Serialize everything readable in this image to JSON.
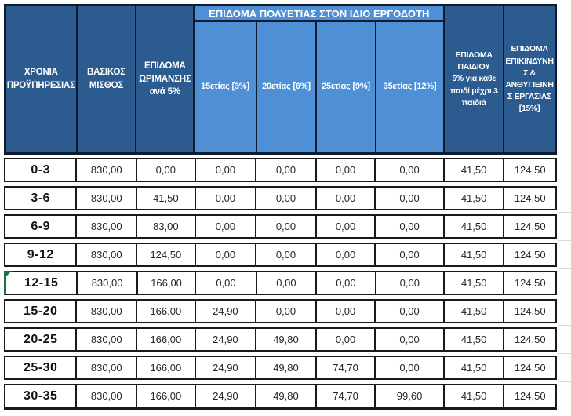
{
  "colors": {
    "header_dark": "#2C5B90",
    "header_light": "#4E8FD6",
    "border_dark": "#0F1C30",
    "row_border": "#1A1A1A",
    "selection_green": "#1E7145",
    "text_header": "#FFFFFF",
    "text_values": "#262626",
    "gridline": "#D9D9D9"
  },
  "table": {
    "header": {
      "years": "ΧΡΟΝΙΑ\nΠΡΟΫΠΗΡΕΣΙΑΣ",
      "base_salary": "ΒΑΣΙΚΟΣ\nΜΙΣΘΟΣ",
      "maturity": "ΕΠΙΔΟΜΑ\nΩΡΙΜΑΝΣΗΣ\nανά 5%",
      "polyetia_banner": "ΕΠΙΔΟΜΑ ΠΟΛΥΕΤΙΑΣ ΣΤΟΝ ΙΔΙΟ ΕΡΓΟΔΟΤΗ",
      "polyetia_cols": [
        "15ετίας [3%]",
        "20ετίας [6%]",
        "25ετίας [9%]",
        "35ετίας [12%]"
      ],
      "child": "ΕΠΙΔΟΜΑ\nΠΑΙΔΙΟΥ\n5% για κάθε\nπαιδί μέχρι 3\nπαιδιά",
      "hazard": "ΕΠΙΔΟΜΑ\nΕΠΙΚΙΝΔΥΝΗ\nΣ &\nΑΝΘΥΓΙΕΙΝΗ\nΣ ΕΡΓΑΣΙΑΣ\n[15%]"
    },
    "rows": [
      {
        "years": "0-3",
        "selected": false,
        "values": [
          "830,00",
          "0,00",
          "0,00",
          "0,00",
          "0,00",
          "0,00",
          "41,50",
          "124,50"
        ]
      },
      {
        "years": "3-6",
        "selected": false,
        "values": [
          "830,00",
          "41,50",
          "0,00",
          "0,00",
          "0,00",
          "0,00",
          "41,50",
          "124,50"
        ]
      },
      {
        "years": "6-9",
        "selected": false,
        "values": [
          "830,00",
          "83,00",
          "0,00",
          "0,00",
          "0,00",
          "0,00",
          "41,50",
          "124,50"
        ]
      },
      {
        "years": "9-12",
        "selected": false,
        "values": [
          "830,00",
          "124,50",
          "0,00",
          "0,00",
          "0,00",
          "0,00",
          "41,50",
          "124,50"
        ]
      },
      {
        "years": "12-15",
        "selected": true,
        "values": [
          "830,00",
          "166,00",
          "0,00",
          "0,00",
          "0,00",
          "0,00",
          "41,50",
          "124,50"
        ]
      },
      {
        "years": "15-20",
        "selected": false,
        "values": [
          "830,00",
          "166,00",
          "24,90",
          "0,00",
          "0,00",
          "0,00",
          "41,50",
          "124,50"
        ]
      },
      {
        "years": "20-25",
        "selected": false,
        "values": [
          "830,00",
          "166,00",
          "24,90",
          "49,80",
          "0,00",
          "0,00",
          "41,50",
          "124,50"
        ]
      },
      {
        "years": "25-30",
        "selected": false,
        "values": [
          "830,00",
          "166,00",
          "24,90",
          "49,80",
          "74,70",
          "0,00",
          "41,50",
          "124,50"
        ]
      },
      {
        "years": "30-35",
        "selected": false,
        "values": [
          "830,00",
          "166,00",
          "24,90",
          "49,80",
          "74,70",
          "99,60",
          "41,50",
          "124,50"
        ]
      }
    ]
  }
}
